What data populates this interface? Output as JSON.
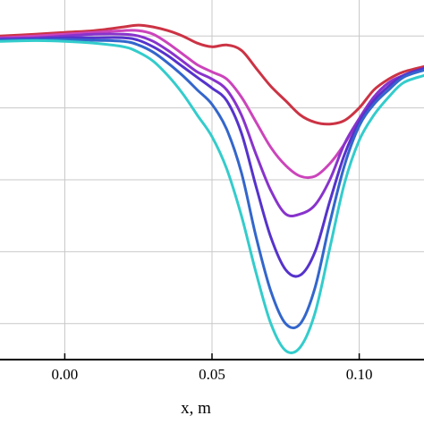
{
  "chart_data": {
    "type": "line",
    "xlabel": "x, m",
    "ylabel": "",
    "xlim": [
      -0.022,
      0.122
    ],
    "ylim": [
      0,
      1
    ],
    "x_ticks": [
      0.0,
      0.05,
      0.1
    ],
    "x_tick_labels": [
      "0.00",
      "0.05",
      "0.10"
    ],
    "y_gridlines": [
      0.1,
      0.3,
      0.5,
      0.7,
      0.9
    ],
    "grid": true,
    "y_values_note_units": "relative (no y-axis labels visible)",
    "series": [
      {
        "color": "#cc3344",
        "x": [
          -0.022,
          -0.01,
          0.0,
          0.01,
          0.02,
          0.025,
          0.03,
          0.035,
          0.04,
          0.045,
          0.05,
          0.055,
          0.06,
          0.065,
          0.07,
          0.075,
          0.08,
          0.085,
          0.09,
          0.095,
          0.1,
          0.105,
          0.11,
          0.115,
          0.122
        ],
        "y": [
          0.9,
          0.905,
          0.91,
          0.915,
          0.925,
          0.93,
          0.925,
          0.915,
          0.9,
          0.88,
          0.87,
          0.875,
          0.86,
          0.81,
          0.76,
          0.72,
          0.68,
          0.66,
          0.655,
          0.665,
          0.7,
          0.75,
          0.78,
          0.8,
          0.815
        ]
      },
      {
        "color": "#cc44bb",
        "x": [
          -0.022,
          -0.01,
          0.0,
          0.01,
          0.02,
          0.025,
          0.03,
          0.035,
          0.04,
          0.045,
          0.05,
          0.055,
          0.06,
          0.065,
          0.07,
          0.075,
          0.08,
          0.085,
          0.09,
          0.095,
          0.1,
          0.105,
          0.11,
          0.115,
          0.122
        ],
        "y": [
          0.895,
          0.9,
          0.905,
          0.91,
          0.915,
          0.915,
          0.905,
          0.88,
          0.85,
          0.82,
          0.8,
          0.78,
          0.73,
          0.66,
          0.59,
          0.54,
          0.51,
          0.51,
          0.545,
          0.6,
          0.67,
          0.73,
          0.77,
          0.79,
          0.81
        ]
      },
      {
        "color": "#8833cc",
        "x": [
          -0.022,
          -0.01,
          0.0,
          0.01,
          0.02,
          0.025,
          0.03,
          0.035,
          0.04,
          0.045,
          0.05,
          0.055,
          0.06,
          0.065,
          0.07,
          0.075,
          0.08,
          0.085,
          0.09,
          0.095,
          0.1,
          0.105,
          0.11,
          0.115,
          0.122
        ],
        "y": [
          0.893,
          0.895,
          0.9,
          0.905,
          0.905,
          0.9,
          0.885,
          0.86,
          0.83,
          0.8,
          0.78,
          0.75,
          0.68,
          0.57,
          0.47,
          0.405,
          0.405,
          0.43,
          0.5,
          0.6,
          0.67,
          0.73,
          0.77,
          0.79,
          0.81
        ]
      },
      {
        "color": "#5533cc",
        "x": [
          -0.022,
          -0.01,
          0.0,
          0.01,
          0.02,
          0.025,
          0.03,
          0.035,
          0.04,
          0.045,
          0.05,
          0.055,
          0.06,
          0.065,
          0.07,
          0.075,
          0.08,
          0.085,
          0.09,
          0.095,
          0.1,
          0.105,
          0.11,
          0.115,
          0.122
        ],
        "y": [
          0.89,
          0.892,
          0.895,
          0.895,
          0.895,
          0.888,
          0.87,
          0.845,
          0.815,
          0.785,
          0.755,
          0.72,
          0.63,
          0.48,
          0.34,
          0.25,
          0.235,
          0.3,
          0.44,
          0.57,
          0.66,
          0.72,
          0.76,
          0.79,
          0.81
        ]
      },
      {
        "color": "#3366cc",
        "x": [
          -0.022,
          -0.01,
          0.0,
          0.01,
          0.02,
          0.025,
          0.03,
          0.035,
          0.04,
          0.045,
          0.05,
          0.055,
          0.06,
          0.065,
          0.07,
          0.075,
          0.08,
          0.085,
          0.09,
          0.095,
          0.1,
          0.105,
          0.11,
          0.115,
          0.122
        ],
        "y": [
          0.888,
          0.89,
          0.89,
          0.888,
          0.885,
          0.875,
          0.855,
          0.825,
          0.79,
          0.75,
          0.71,
          0.64,
          0.52,
          0.34,
          0.19,
          0.1,
          0.1,
          0.2,
          0.38,
          0.54,
          0.65,
          0.71,
          0.75,
          0.785,
          0.805
        ]
      },
      {
        "color": "#33cccc",
        "x": [
          -0.022,
          -0.01,
          0.0,
          0.01,
          0.02,
          0.025,
          0.03,
          0.035,
          0.04,
          0.045,
          0.05,
          0.055,
          0.06,
          0.065,
          0.07,
          0.075,
          0.08,
          0.085,
          0.09,
          0.095,
          0.1,
          0.105,
          0.11,
          0.115,
          0.122
        ],
        "y": [
          0.885,
          0.887,
          0.885,
          0.88,
          0.87,
          0.855,
          0.83,
          0.79,
          0.74,
          0.68,
          0.62,
          0.53,
          0.4,
          0.24,
          0.1,
          0.025,
          0.035,
          0.13,
          0.31,
          0.49,
          0.61,
          0.68,
          0.73,
          0.77,
          0.79
        ]
      }
    ]
  }
}
